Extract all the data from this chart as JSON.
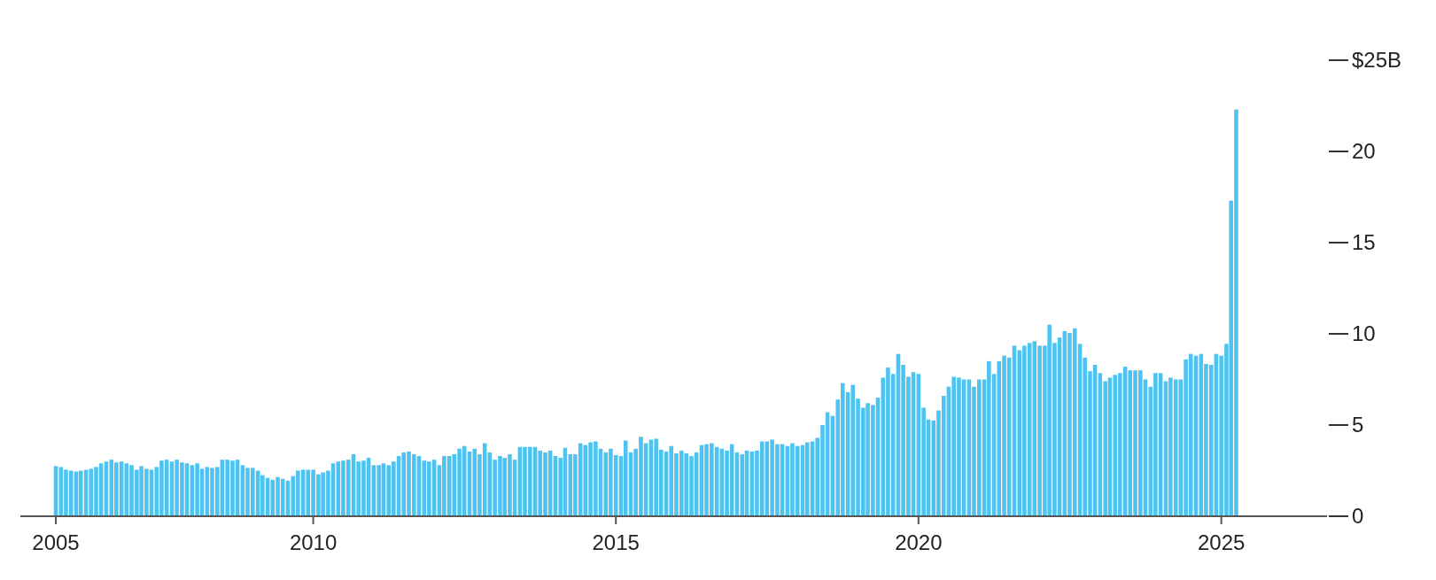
{
  "chart_data": {
    "type": "bar",
    "x": [
      "2005-10",
      "2005-11",
      "2005-12",
      "2006-01",
      "2006-02",
      "2006-03",
      "2006-04",
      "2006-05",
      "2006-06",
      "2006-07",
      "2006-08",
      "2006-09",
      "2006-10",
      "2006-11",
      "2006-12",
      "2007-01",
      "2007-02",
      "2007-03",
      "2007-04",
      "2007-05",
      "2007-06",
      "2007-07",
      "2007-08",
      "2007-09",
      "2007-10",
      "2007-11",
      "2007-12",
      "2008-01",
      "2008-02",
      "2008-03",
      "2008-04",
      "2008-05",
      "2008-06",
      "2008-07",
      "2008-08",
      "2008-09",
      "2008-10",
      "2008-11",
      "2008-12",
      "2009-01",
      "2009-02",
      "2009-03",
      "2009-04",
      "2009-05",
      "2009-06",
      "2009-07",
      "2009-08",
      "2009-09",
      "2009-10",
      "2009-11",
      "2009-12",
      "2010-01",
      "2010-02",
      "2010-03",
      "2010-04",
      "2010-05",
      "2010-06",
      "2010-07",
      "2010-08",
      "2010-09",
      "2010-10",
      "2010-11",
      "2010-12",
      "2011-01",
      "2011-02",
      "2011-03",
      "2011-04",
      "2011-05",
      "2011-06",
      "2011-07",
      "2011-08",
      "2011-09",
      "2011-10",
      "2011-11",
      "2011-12",
      "2012-01",
      "2012-02",
      "2012-03",
      "2012-04",
      "2012-05",
      "2012-06",
      "2012-07",
      "2012-08",
      "2012-09",
      "2012-10",
      "2012-11",
      "2012-12",
      "2013-01",
      "2013-02",
      "2013-03",
      "2013-04",
      "2013-05",
      "2013-06",
      "2013-07",
      "2013-08",
      "2013-09",
      "2013-10",
      "2013-11",
      "2013-12",
      "2014-01",
      "2014-02",
      "2014-03",
      "2014-04",
      "2014-05",
      "2014-06",
      "2014-07",
      "2014-08",
      "2014-09",
      "2014-10",
      "2014-11",
      "2014-12",
      "2015-01",
      "2015-02",
      "2015-03",
      "2015-04",
      "2015-05",
      "2015-06",
      "2015-07",
      "2015-08",
      "2015-09",
      "2015-10",
      "2015-11",
      "2015-12",
      "2016-01",
      "2016-02",
      "2016-03",
      "2016-04",
      "2016-05",
      "2016-06",
      "2016-07",
      "2016-08",
      "2016-09",
      "2016-10",
      "2016-11",
      "2016-12",
      "2017-01",
      "2017-02",
      "2017-03",
      "2017-04",
      "2017-05",
      "2017-06",
      "2017-07",
      "2017-08",
      "2017-09",
      "2017-10",
      "2017-11",
      "2017-12",
      "2018-01",
      "2018-02",
      "2018-03",
      "2018-04",
      "2018-05",
      "2018-06",
      "2018-07",
      "2018-08",
      "2018-09",
      "2018-10",
      "2018-11",
      "2018-12",
      "2019-01",
      "2019-02",
      "2019-03",
      "2019-04",
      "2019-05",
      "2019-06",
      "2019-07",
      "2019-08",
      "2019-09",
      "2019-10",
      "2019-11",
      "2019-12",
      "2020-01",
      "2020-02",
      "2020-03",
      "2020-04",
      "2020-05",
      "2020-06",
      "2020-07",
      "2020-08",
      "2020-09",
      "2020-10",
      "2020-11",
      "2020-12",
      "2021-01",
      "2021-02",
      "2021-03",
      "2021-04",
      "2021-05",
      "2021-06",
      "2021-07",
      "2021-08",
      "2021-09",
      "2021-10",
      "2021-11",
      "2021-12",
      "2022-01",
      "2022-02",
      "2022-03",
      "2022-04",
      "2022-05",
      "2022-06",
      "2022-07",
      "2022-08",
      "2022-09",
      "2022-10",
      "2022-11",
      "2022-12",
      "2023-01",
      "2023-02",
      "2023-03",
      "2023-04",
      "2023-05",
      "2023-06",
      "2023-07",
      "2023-08",
      "2023-09",
      "2023-10",
      "2023-11",
      "2023-12",
      "2024-01",
      "2024-02",
      "2024-03",
      "2024-04",
      "2024-05",
      "2024-06",
      "2024-07",
      "2024-08",
      "2024-09",
      "2024-10",
      "2024-11",
      "2024-12",
      "2025-01",
      "2025-02",
      "2025-03",
      "2025-04"
    ],
    "values": [
      2.75,
      2.7,
      2.55,
      2.5,
      2.45,
      2.5,
      2.55,
      2.6,
      2.7,
      2.9,
      3.0,
      3.1,
      2.95,
      3.0,
      2.9,
      2.8,
      2.55,
      2.75,
      2.6,
      2.55,
      2.7,
      3.05,
      3.1,
      3.0,
      3.1,
      2.95,
      2.9,
      2.8,
      2.9,
      2.6,
      2.7,
      2.65,
      2.7,
      3.1,
      3.1,
      3.05,
      3.1,
      2.8,
      2.65,
      2.65,
      2.5,
      2.25,
      2.1,
      2.0,
      2.15,
      2.05,
      1.95,
      2.2,
      2.5,
      2.55,
      2.55,
      2.55,
      2.3,
      2.4,
      2.5,
      2.9,
      3.0,
      3.05,
      3.1,
      3.4,
      3.0,
      3.05,
      3.2,
      2.8,
      2.8,
      2.9,
      2.8,
      3.0,
      3.3,
      3.5,
      3.55,
      3.4,
      3.3,
      3.05,
      3.0,
      3.1,
      2.8,
      3.3,
      3.3,
      3.4,
      3.7,
      3.85,
      3.55,
      3.7,
      3.4,
      4.0,
      3.5,
      3.1,
      3.3,
      3.2,
      3.4,
      3.1,
      3.8,
      3.8,
      3.8,
      3.8,
      3.6,
      3.5,
      3.6,
      3.3,
      3.2,
      3.75,
      3.4,
      3.4,
      4.0,
      3.9,
      4.05,
      4.1,
      3.7,
      3.5,
      3.7,
      3.35,
      3.3,
      4.15,
      3.5,
      3.7,
      4.35,
      4.0,
      4.2,
      4.25,
      3.65,
      3.55,
      3.85,
      3.45,
      3.6,
      3.45,
      3.3,
      3.5,
      3.9,
      3.95,
      4.0,
      3.8,
      3.7,
      3.6,
      3.95,
      3.5,
      3.4,
      3.6,
      3.55,
      3.6,
      4.1,
      4.1,
      4.2,
      3.95,
      3.95,
      3.85,
      4.0,
      3.85,
      3.9,
      4.05,
      4.1,
      4.3,
      5.0,
      5.7,
      5.5,
      6.4,
      7.3,
      6.8,
      7.2,
      6.45,
      5.95,
      6.2,
      6.1,
      6.5,
      7.6,
      8.15,
      7.8,
      8.9,
      8.3,
      7.65,
      7.9,
      7.8,
      5.95,
      5.3,
      5.25,
      5.8,
      6.6,
      7.1,
      7.65,
      7.6,
      7.5,
      7.5,
      7.1,
      7.5,
      7.5,
      8.5,
      7.8,
      8.5,
      8.8,
      8.7,
      9.35,
      9.1,
      9.35,
      9.5,
      9.6,
      9.35,
      9.35,
      10.5,
      9.5,
      9.8,
      10.15,
      10.05,
      10.3,
      9.45,
      8.7,
      7.95,
      8.3,
      7.85,
      7.4,
      7.6,
      7.75,
      7.85,
      8.2,
      8.0,
      8.0,
      8.0,
      7.5,
      7.1,
      7.85,
      7.85,
      7.4,
      7.6,
      7.5,
      7.5,
      8.6,
      8.9,
      8.8,
      8.9,
      8.35,
      8.3,
      8.9,
      8.8,
      9.45,
      17.3,
      22.3
    ],
    "color": "#4cc3f0",
    "xlim": [
      "2005-03",
      "2026-10"
    ],
    "xticks": [
      {
        "value": "2005-10",
        "label": "2005"
      },
      {
        "value": "2010-01",
        "label": "2010"
      },
      {
        "value": "2015-01",
        "label": "2015"
      },
      {
        "value": "2020-01",
        "label": "2020"
      },
      {
        "value": "2025-01",
        "label": "2025"
      }
    ],
    "ylim": [
      0,
      25
    ],
    "yticks": [
      0,
      5,
      10,
      15,
      20,
      {
        "value": 25,
        "label": "$25B"
      }
    ]
  }
}
